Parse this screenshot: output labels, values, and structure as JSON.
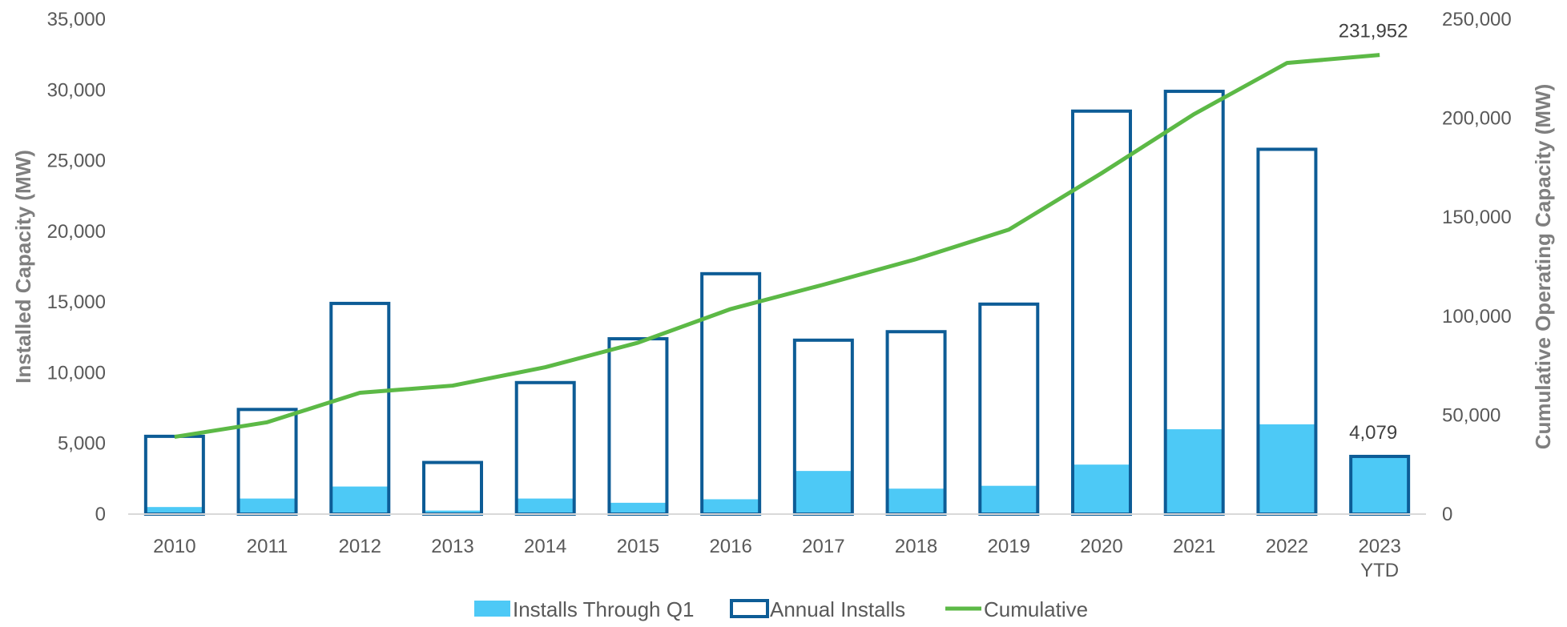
{
  "chart_data": {
    "type": "bar",
    "categories": [
      "2010",
      "2011",
      "2012",
      "2013",
      "2014",
      "2015",
      "2016",
      "2017",
      "2018",
      "2019",
      "2020",
      "2021",
      "2022",
      "2023\nYTD"
    ],
    "series": [
      {
        "name": "Installs Through Q1",
        "axis": "left",
        "kind": "bar",
        "color": "#4dc9f6",
        "values": [
          500,
          1100,
          1950,
          250,
          1100,
          800,
          1050,
          3050,
          1800,
          2000,
          3500,
          6000,
          6350,
          4079
        ]
      },
      {
        "name": "Annual Installs",
        "axis": "left",
        "kind": "bar-outline",
        "color": "#0d5c96",
        "values": [
          5500,
          7400,
          14900,
          3650,
          9300,
          12400,
          17000,
          12300,
          12900,
          14850,
          28500,
          29900,
          25800,
          4079
        ]
      },
      {
        "name": "Cumulative",
        "axis": "right",
        "kind": "line",
        "color": "#5cb946",
        "values": [
          39000,
          46400,
          61300,
          64900,
          74200,
          86600,
          103600,
          115900,
          128800,
          143700,
          172200,
          202100,
          227900,
          231952
        ]
      }
    ],
    "ylabel": "Installed Capacity (MW)",
    "y2label": "Cumulative Operating Capacity (MW)",
    "ylim": [
      0,
      35000
    ],
    "y2lim": [
      0,
      250000
    ],
    "yticks": [
      "0",
      "5,000",
      "10,000",
      "15,000",
      "20,000",
      "25,000",
      "30,000",
      "35,000"
    ],
    "y2ticks": [
      "0",
      "50,000",
      "100,000",
      "150,000",
      "200,000",
      "250,000"
    ],
    "annotations": [
      {
        "text": "231,952",
        "series": "Cumulative",
        "index": 13
      },
      {
        "text": "4,079",
        "series": "Annual Installs",
        "index": 13
      }
    ],
    "legend": {
      "position": "bottom",
      "items": [
        "Installs Through Q1",
        "Annual Installs",
        "Cumulative"
      ]
    },
    "grid": false
  }
}
